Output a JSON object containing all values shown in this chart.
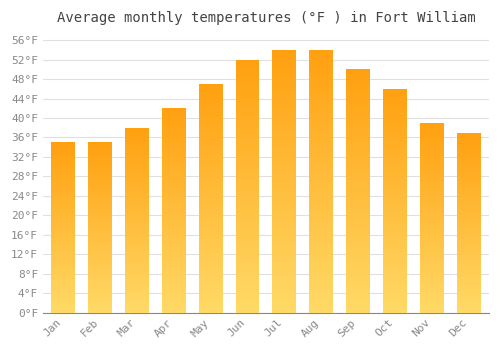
{
  "title": "Average monthly temperatures (°F ) in Fort William",
  "months": [
    "Jan",
    "Feb",
    "Mar",
    "Apr",
    "May",
    "Jun",
    "Jul",
    "Aug",
    "Sep",
    "Oct",
    "Nov",
    "Dec"
  ],
  "values": [
    35,
    35,
    38,
    42,
    47,
    52,
    54,
    54,
    50,
    46,
    39,
    37
  ],
  "bar_color_bottom": "#FFD966",
  "bar_color_top": "#FFA010",
  "ylim": [
    0,
    58
  ],
  "yticks": [
    0,
    4,
    8,
    12,
    16,
    20,
    24,
    28,
    32,
    36,
    40,
    44,
    48,
    52,
    56
  ],
  "ytick_labels": [
    "0°F",
    "4°F",
    "8°F",
    "12°F",
    "16°F",
    "20°F",
    "24°F",
    "28°F",
    "32°F",
    "36°F",
    "40°F",
    "44°F",
    "48°F",
    "52°F",
    "56°F"
  ],
  "background_color": "#ffffff",
  "plot_bg_color": "#ffffff",
  "grid_color": "#e0e0e0",
  "title_fontsize": 10,
  "tick_fontsize": 8,
  "title_color": "#444444",
  "tick_color": "#888888",
  "bar_width": 0.65,
  "n_gradient_segments": 100
}
